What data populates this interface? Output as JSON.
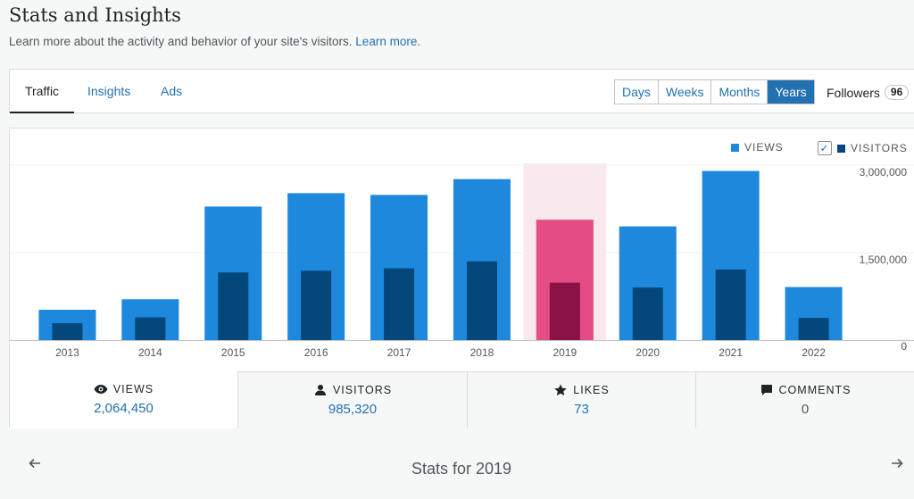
{
  "header": {
    "title": "Stats and Insights",
    "subtitle": "Learn more about the activity and behavior of your site's visitors.",
    "learn_more": "Learn more."
  },
  "tabs": [
    {
      "label": "Traffic",
      "active": true
    },
    {
      "label": "Insights",
      "active": false
    },
    {
      "label": "Ads",
      "active": false
    }
  ],
  "period": {
    "options": [
      "Days",
      "Weeks",
      "Months",
      "Years"
    ],
    "selected": "Years"
  },
  "followers": {
    "label": "Followers",
    "count": "96"
  },
  "legend": {
    "views": "VIEWS",
    "visitors": "VISITORS",
    "visitors_checked": true
  },
  "colors": {
    "views": "#1e88dc",
    "visitors": "#04477a",
    "views_selected": "#e34c84",
    "visitors_selected": "#8b1245",
    "selected_bg": "#fae8ef",
    "accent": "#2271b1"
  },
  "chart_data": {
    "type": "bar",
    "categories": [
      "2013",
      "2014",
      "2015",
      "2016",
      "2017",
      "2018",
      "2019",
      "2020",
      "2021",
      "2022"
    ],
    "series": [
      {
        "name": "VIEWS",
        "values": [
          520000,
          700000,
          2290000,
          2520000,
          2490000,
          2760000,
          2064450,
          1950000,
          2900000,
          910000
        ]
      },
      {
        "name": "VISITORS",
        "values": [
          290000,
          390000,
          1160000,
          1190000,
          1230000,
          1350000,
          985320,
          900000,
          1210000,
          380000
        ]
      }
    ],
    "selected_category": "2019",
    "y_ticks": [
      {
        "value": 3000000,
        "label": "3,000,000"
      },
      {
        "value": 1500000,
        "label": "1,500,000"
      },
      {
        "value": 0,
        "label": "0"
      }
    ],
    "ylim": [
      0,
      3000000
    ],
    "grid": true
  },
  "stats": [
    {
      "label": "VIEWS",
      "value": "2,064,450",
      "icon": "eye-icon",
      "active": true
    },
    {
      "label": "VISITORS",
      "value": "985,320",
      "icon": "person-icon",
      "active": false
    },
    {
      "label": "LIKES",
      "value": "73",
      "icon": "star-icon",
      "active": false
    },
    {
      "label": "COMMENTS",
      "value": "0",
      "icon": "comment-icon",
      "active": false
    }
  ],
  "footer": {
    "stats_for": "Stats for 2019",
    "prev_icon": "arrow-left-icon",
    "next_icon": "arrow-right-icon"
  }
}
